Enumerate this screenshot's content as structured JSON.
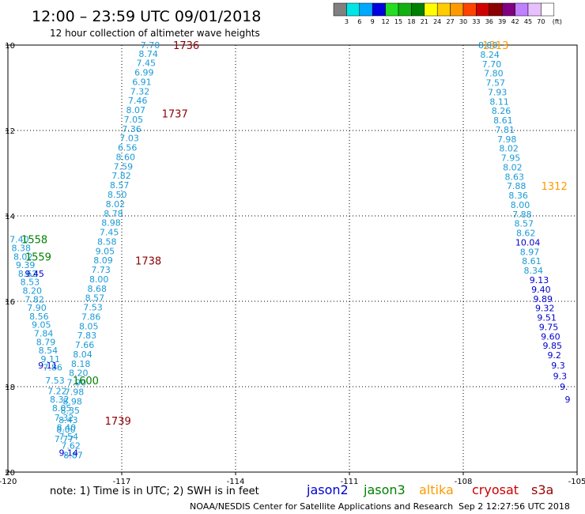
{
  "header": {
    "title": "12:00 – 23:59 UTC 09/01/2018",
    "subtitle": "12 hour collection of altimeter wave heights"
  },
  "colorbar": {
    "labels": [
      "3",
      "6",
      "9",
      "12",
      "15",
      "18",
      "21",
      "24",
      "27",
      "30",
      "33",
      "36",
      "39",
      "42",
      "45",
      "70"
    ],
    "unit": "(ft)",
    "colors": [
      "#808080",
      "#00e5e5",
      "#00a8ff",
      "#0000e0",
      "#22dd22",
      "#12b012",
      "#008000",
      "#ffff00",
      "#ffcc00",
      "#ff9900",
      "#ff4400",
      "#d00000",
      "#8b0000",
      "#800080",
      "#c080ff",
      "#e8c0ff",
      "#ffffff"
    ]
  },
  "footer": {
    "note": "note:  1) Time is in UTC;  2) SWH is in feet",
    "legend": [
      {
        "name": "jason2",
        "color": "#0000cc"
      },
      {
        "name": "jason3",
        "color": "#008000"
      },
      {
        "name": "altika",
        "color": "#ff9900"
      },
      {
        "name": "cryosat",
        "color": "#cc0000"
      },
      {
        "name": "s3a",
        "color": "#990000"
      }
    ],
    "credit": "NOAA/NESDIS Center for Satellite Applications and Research",
    "timestamp": "Sep  2 12:27:56 UTC 2018"
  },
  "chart_data": {
    "type": "scatter",
    "xlabel": "",
    "ylabel": "",
    "xlim": [
      -120,
      -105
    ],
    "ylim": [
      20,
      10
    ],
    "xticks": [
      {
        "v": -120,
        "label": "-120"
      },
      {
        "v": -117,
        "label": "-117"
      },
      {
        "v": -114,
        "label": "-114"
      },
      {
        "v": -111,
        "label": "-111"
      },
      {
        "v": -108,
        "label": "-108"
      },
      {
        "v": -105,
        "label": "-105"
      }
    ],
    "yticks": [
      {
        "v": 10,
        "label": "10"
      },
      {
        "v": 12,
        "label": "12"
      },
      {
        "v": 14,
        "label": "14"
      },
      {
        "v": 16,
        "label": "16"
      },
      {
        "v": 18,
        "label": "18"
      },
      {
        "v": 20,
        "label": "20"
      }
    ],
    "grid": true,
    "time_labels": [
      {
        "text": "1736",
        "lon": -115.3,
        "lat": 10.0,
        "color": "#8b0000"
      },
      {
        "text": "1737",
        "lon": -115.6,
        "lat": 11.6,
        "color": "#8b0000"
      },
      {
        "text": "1738",
        "lon": -116.3,
        "lat": 15.05,
        "color": "#8b0000"
      },
      {
        "text": "1739",
        "lon": -117.1,
        "lat": 18.8,
        "color": "#8b0000"
      },
      {
        "text": "1313",
        "lon": -107.15,
        "lat": 10.0,
        "color": "#ff9900"
      },
      {
        "text": "1312",
        "lon": -105.6,
        "lat": 13.3,
        "color": "#ff9900"
      },
      {
        "text": "1558",
        "lon": -119.3,
        "lat": 14.55,
        "color": "#008000"
      },
      {
        "text": "1559",
        "lon": -119.2,
        "lat": 14.95,
        "color": "#008000"
      },
      {
        "text": "1600",
        "lon": -117.95,
        "lat": 17.85,
        "color": "#008000"
      }
    ],
    "series": [
      {
        "color": "#1a9ad6",
        "points": [
          {
            "lon": -116.25,
            "lat": 10.0,
            "v": "7.70"
          },
          {
            "lon": -116.3,
            "lat": 10.2,
            "v": "8.74"
          },
          {
            "lon": -116.36,
            "lat": 10.42,
            "v": "7.45"
          },
          {
            "lon": -116.41,
            "lat": 10.64,
            "v": "6.99"
          },
          {
            "lon": -116.47,
            "lat": 10.86,
            "v": "6.91"
          },
          {
            "lon": -116.52,
            "lat": 11.08,
            "v": "7.32"
          },
          {
            "lon": -116.58,
            "lat": 11.3,
            "v": "7.46"
          },
          {
            "lon": -116.63,
            "lat": 11.52,
            "v": "8.07"
          },
          {
            "lon": -116.69,
            "lat": 11.74,
            "v": "7.05"
          },
          {
            "lon": -116.74,
            "lat": 11.96,
            "v": "7.36"
          },
          {
            "lon": -116.8,
            "lat": 12.18,
            "v": "7.03"
          },
          {
            "lon": -116.85,
            "lat": 12.4,
            "v": "6.56"
          },
          {
            "lon": -116.9,
            "lat": 12.62,
            "v": "8.60"
          },
          {
            "lon": -116.96,
            "lat": 12.84,
            "v": "7.59"
          },
          {
            "lon": -117.01,
            "lat": 13.06,
            "v": "7.82"
          },
          {
            "lon": -117.06,
            "lat": 13.28,
            "v": "8.57"
          },
          {
            "lon": -117.12,
            "lat": 13.5,
            "v": "8.50"
          },
          {
            "lon": -117.17,
            "lat": 13.72,
            "v": "8.02"
          },
          {
            "lon": -117.22,
            "lat": 13.94,
            "v": "8.78"
          },
          {
            "lon": -117.28,
            "lat": 14.16,
            "v": "8.98"
          },
          {
            "lon": -117.33,
            "lat": 14.38,
            "v": "7.45"
          },
          {
            "lon": -117.39,
            "lat": 14.6,
            "v": "8.58"
          },
          {
            "lon": -117.44,
            "lat": 14.82,
            "v": "9.05"
          },
          {
            "lon": -117.49,
            "lat": 15.04,
            "v": "8.09"
          },
          {
            "lon": -117.55,
            "lat": 15.26,
            "v": "7.73"
          },
          {
            "lon": -117.6,
            "lat": 15.48,
            "v": "8.00"
          },
          {
            "lon": -117.65,
            "lat": 15.7,
            "v": "8.68"
          },
          {
            "lon": -117.71,
            "lat": 15.92,
            "v": "8.57"
          },
          {
            "lon": -117.76,
            "lat": 16.14,
            "v": "7.53"
          },
          {
            "lon": -117.81,
            "lat": 16.36,
            "v": "7.86"
          },
          {
            "lon": -117.87,
            "lat": 16.58,
            "v": "8.05"
          },
          {
            "lon": -117.92,
            "lat": 16.8,
            "v": "7.83"
          },
          {
            "lon": -117.98,
            "lat": 17.02,
            "v": "7.66"
          },
          {
            "lon": -118.03,
            "lat": 17.24,
            "v": "8.04"
          },
          {
            "lon": -118.08,
            "lat": 17.46,
            "v": "8.18"
          },
          {
            "lon": -118.14,
            "lat": 17.68,
            "v": "8.20"
          },
          {
            "lon": -118.19,
            "lat": 17.9,
            "v": "7.90"
          },
          {
            "lon": -118.25,
            "lat": 18.12,
            "v": "7.98"
          },
          {
            "lon": -118.3,
            "lat": 18.34,
            "v": "8.98"
          },
          {
            "lon": -118.36,
            "lat": 18.56,
            "v": "8.35"
          },
          {
            "lon": -118.41,
            "lat": 18.78,
            "v": "8.43"
          },
          {
            "lon": -118.47,
            "lat": 19.0,
            "v": "8.00"
          },
          {
            "lon": -118.52,
            "lat": 19.22,
            "v": "7.77"
          }
        ]
      },
      {
        "color": "#1a9ad6",
        "points": [
          {
            "lon": -119.7,
            "lat": 14.55,
            "v": "7.40"
          },
          {
            "lon": -119.65,
            "lat": 14.75,
            "v": "8.38"
          },
          {
            "lon": -119.6,
            "lat": 14.95,
            "v": "8.02"
          },
          {
            "lon": -119.54,
            "lat": 15.15,
            "v": "9.39"
          },
          {
            "lon": -119.48,
            "lat": 15.35,
            "v": "8.62"
          },
          {
            "lon": -119.42,
            "lat": 15.55,
            "v": "8.53"
          },
          {
            "lon": -119.36,
            "lat": 15.75,
            "v": "8.20"
          },
          {
            "lon": -119.3,
            "lat": 15.95,
            "v": "7.82"
          },
          {
            "lon": -119.24,
            "lat": 16.15,
            "v": "7.90"
          },
          {
            "lon": -119.18,
            "lat": 16.35,
            "v": "8.56"
          },
          {
            "lon": -119.12,
            "lat": 16.55,
            "v": "9.05"
          },
          {
            "lon": -119.06,
            "lat": 16.75,
            "v": "7.84"
          },
          {
            "lon": -119.0,
            "lat": 16.95,
            "v": "8.79"
          },
          {
            "lon": -118.94,
            "lat": 17.15,
            "v": "8.54"
          },
          {
            "lon": -118.88,
            "lat": 17.35,
            "v": "9.11"
          },
          {
            "lon": -118.82,
            "lat": 17.55,
            "v": "7.86"
          },
          {
            "lon": -118.76,
            "lat": 17.85,
            "v": "7.53"
          },
          {
            "lon": -118.7,
            "lat": 18.1,
            "v": "7.22"
          },
          {
            "lon": -118.64,
            "lat": 18.3,
            "v": "8.32"
          },
          {
            "lon": -118.58,
            "lat": 18.5,
            "v": "8.05"
          },
          {
            "lon": -118.52,
            "lat": 18.72,
            "v": "7.32"
          },
          {
            "lon": -118.46,
            "lat": 18.95,
            "v": "8.40"
          },
          {
            "lon": -118.4,
            "lat": 19.17,
            "v": "7.54"
          },
          {
            "lon": -118.34,
            "lat": 19.38,
            "v": "7.62"
          },
          {
            "lon": -118.28,
            "lat": 19.6,
            "v": "8.87"
          }
        ]
      },
      {
        "color": "#0000cc",
        "points": [
          {
            "lon": -119.3,
            "lat": 15.35,
            "v": "9.45"
          },
          {
            "lon": -118.95,
            "lat": 17.5,
            "v": "9.11"
          },
          {
            "lon": -118.4,
            "lat": 19.55,
            "v": "9.14"
          }
        ]
      },
      {
        "color": "#1a9ad6",
        "points": [
          {
            "lon": -107.35,
            "lat": 10.0,
            "v": "8.00"
          },
          {
            "lon": -107.3,
            "lat": 10.22,
            "v": "8.24"
          },
          {
            "lon": -107.25,
            "lat": 10.44,
            "v": "7.70"
          },
          {
            "lon": -107.2,
            "lat": 10.66,
            "v": "7.80"
          },
          {
            "lon": -107.15,
            "lat": 10.88,
            "v": "7.57"
          },
          {
            "lon": -107.1,
            "lat": 11.1,
            "v": "7.93"
          },
          {
            "lon": -107.05,
            "lat": 11.32,
            "v": "8.11"
          },
          {
            "lon": -107.0,
            "lat": 11.54,
            "v": "8.26"
          },
          {
            "lon": -106.95,
            "lat": 11.76,
            "v": "8.61"
          },
          {
            "lon": -106.9,
            "lat": 11.98,
            "v": "7.81"
          },
          {
            "lon": -106.85,
            "lat": 12.2,
            "v": "7.98"
          },
          {
            "lon": -106.8,
            "lat": 12.42,
            "v": "8.02"
          },
          {
            "lon": -106.75,
            "lat": 12.64,
            "v": "7.95"
          },
          {
            "lon": -106.7,
            "lat": 12.86,
            "v": "8.02"
          },
          {
            "lon": -106.65,
            "lat": 13.08,
            "v": "8.63"
          },
          {
            "lon": -106.6,
            "lat": 13.3,
            "v": "7.88"
          },
          {
            "lon": -106.55,
            "lat": 13.52,
            "v": "8.36"
          },
          {
            "lon": -106.5,
            "lat": 13.74,
            "v": "8.00"
          },
          {
            "lon": -106.45,
            "lat": 13.96,
            "v": "7.88"
          },
          {
            "lon": -106.4,
            "lat": 14.18,
            "v": "8.57"
          },
          {
            "lon": -106.35,
            "lat": 14.4,
            "v": "8.62"
          },
          {
            "lon": -106.25,
            "lat": 14.84,
            "v": "8.97"
          },
          {
            "lon": -106.2,
            "lat": 15.06,
            "v": "8.61"
          },
          {
            "lon": -106.15,
            "lat": 15.28,
            "v": "8.34"
          }
        ]
      },
      {
        "color": "#0000cc",
        "points": [
          {
            "lon": -106.3,
            "lat": 14.62,
            "v": "10.04"
          },
          {
            "lon": -106.0,
            "lat": 15.5,
            "v": "9.13"
          },
          {
            "lon": -105.95,
            "lat": 15.72,
            "v": "9.40"
          },
          {
            "lon": -105.9,
            "lat": 15.94,
            "v": "9.89"
          },
          {
            "lon": -105.85,
            "lat": 16.16,
            "v": "9.32"
          },
          {
            "lon": -105.8,
            "lat": 16.38,
            "v": "9.51"
          },
          {
            "lon": -105.75,
            "lat": 16.6,
            "v": "9.75"
          },
          {
            "lon": -105.7,
            "lat": 16.82,
            "v": "9.60"
          },
          {
            "lon": -105.65,
            "lat": 17.04,
            "v": "9.85"
          },
          {
            "lon": -105.6,
            "lat": 17.26,
            "v": "9.2"
          },
          {
            "lon": -105.5,
            "lat": 17.5,
            "v": "9.3"
          },
          {
            "lon": -105.45,
            "lat": 17.75,
            "v": "9.3"
          },
          {
            "lon": -105.35,
            "lat": 18.0,
            "v": "9."
          },
          {
            "lon": -105.25,
            "lat": 18.3,
            "v": "9"
          }
        ]
      }
    ]
  }
}
